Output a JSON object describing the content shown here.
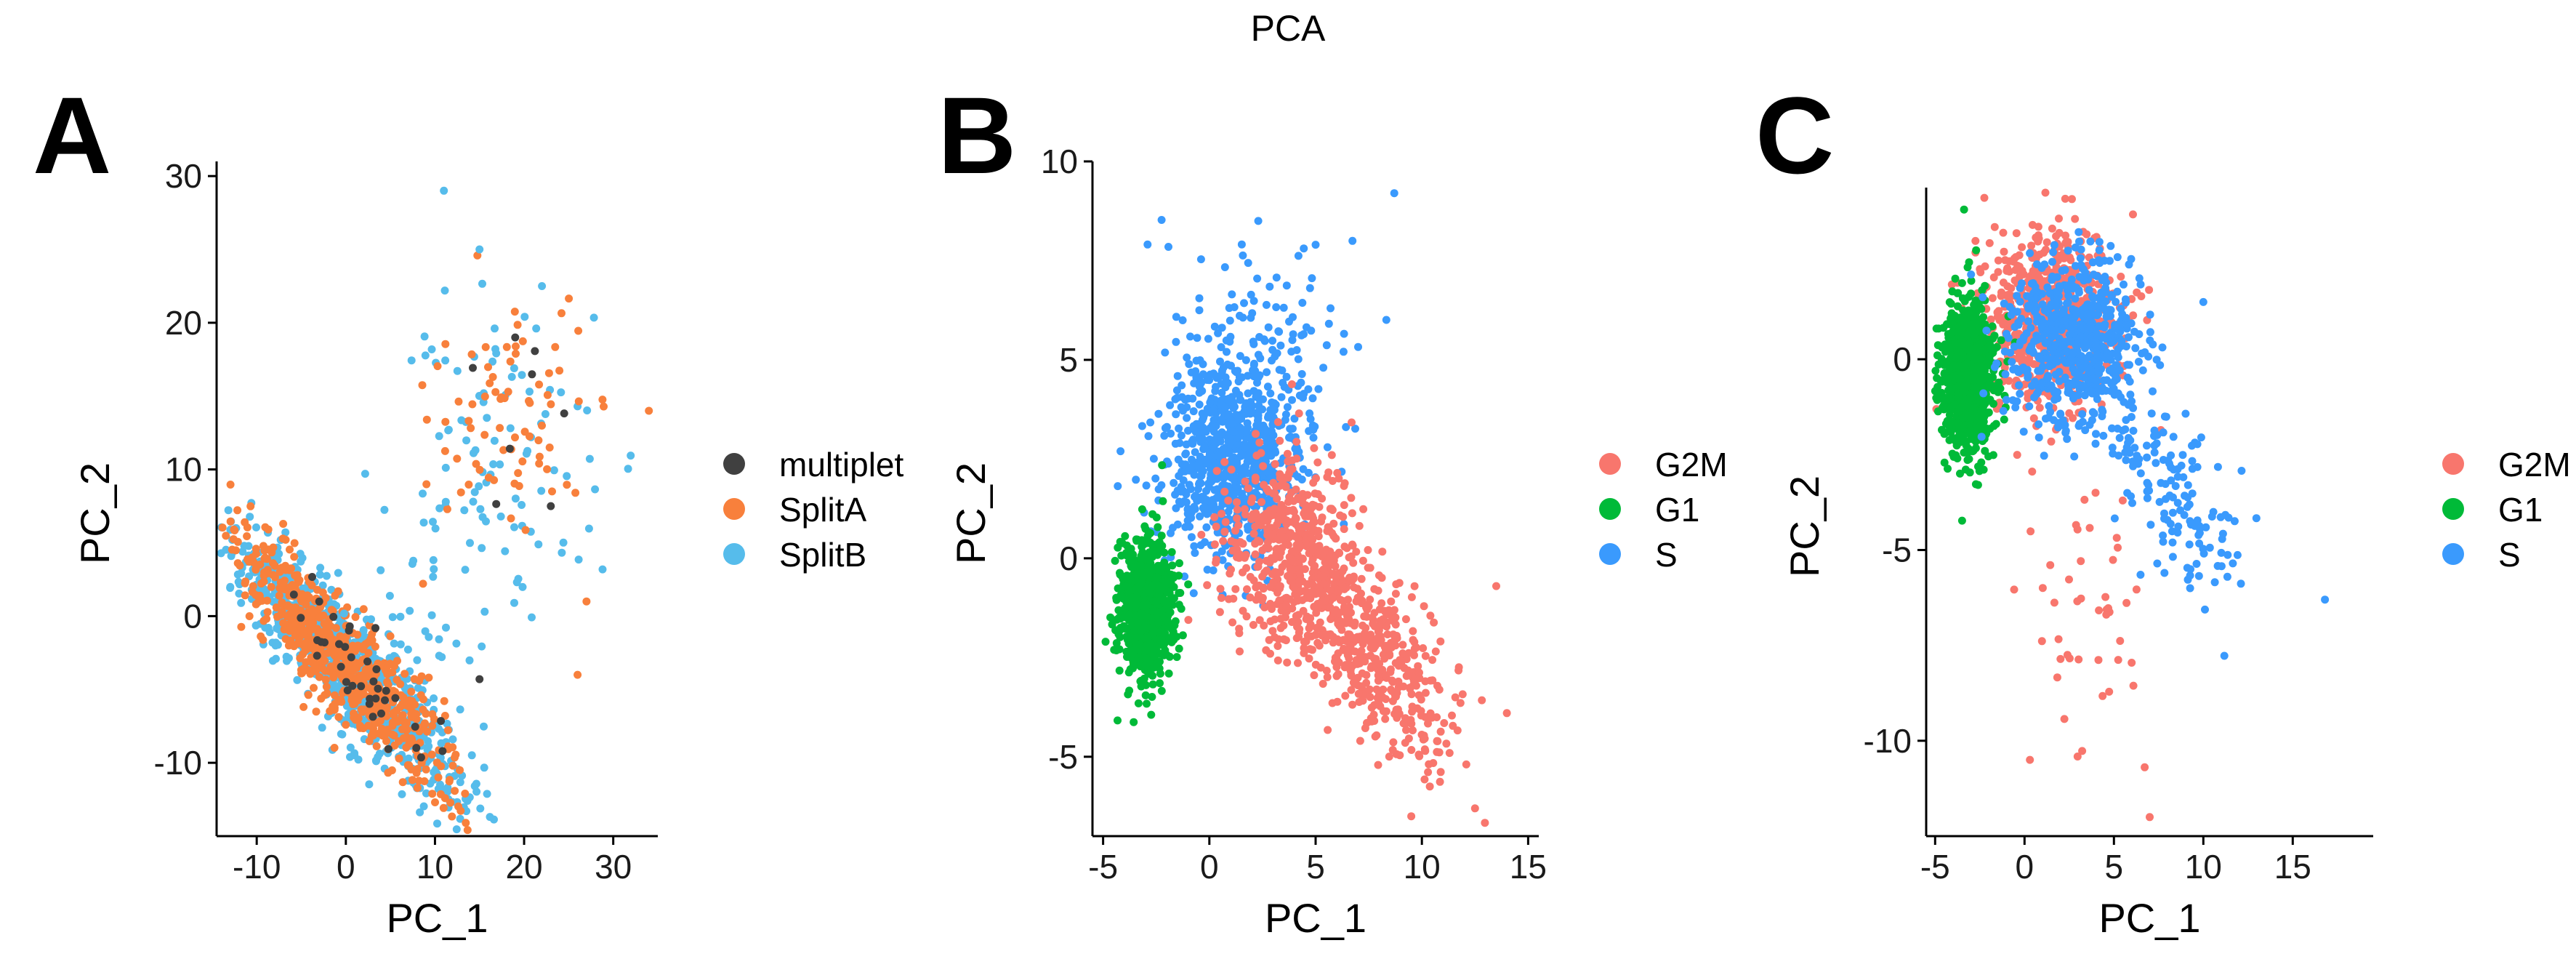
{
  "figure_title": "PCA",
  "chart_data": [
    {
      "id": "A",
      "panel_label": "A",
      "type": "scatter",
      "xlabel": "PC_1",
      "ylabel": "PC_2",
      "xlim": [
        -14.5,
        35
      ],
      "ylim": [
        -15,
        31
      ],
      "xticks": [
        -10,
        0,
        10,
        20,
        30
      ],
      "yticks": [
        -10,
        0,
        10,
        20,
        30
      ],
      "grid": false,
      "legend_position": "right",
      "series": [
        {
          "name": "multiplet",
          "color": "#404040"
        },
        {
          "name": "SplitA",
          "color": "#F8803C"
        },
        {
          "name": "SplitB",
          "color": "#56BCEB"
        }
      ],
      "clusters": [
        {
          "series": "SplitB",
          "n": 900,
          "kind": "line",
          "from": [
            -10,
            3.5
          ],
          "to": [
            10,
            -10
          ],
          "sd_along": 0.32,
          "sd_perp": 1.7
        },
        {
          "series": "SplitA",
          "n": 650,
          "kind": "line",
          "from": [
            -10,
            3.5
          ],
          "to": [
            10,
            -10
          ],
          "sd_along": 0.32,
          "sd_perp": 1.7
        },
        {
          "series": "SplitB",
          "n": 95,
          "kind": "blob",
          "center": [
            17,
            11
          ],
          "sd": [
            6,
            5
          ]
        },
        {
          "series": "SplitA",
          "n": 75,
          "kind": "blob",
          "center": [
            18,
            13
          ],
          "sd": [
            5,
            4
          ]
        },
        {
          "series": "SplitB",
          "n": 30,
          "kind": "blob",
          "center": [
            9,
            2
          ],
          "sd": [
            4,
            5
          ]
        },
        {
          "series": "multiplet",
          "n": 38,
          "kind": "line",
          "from": [
            -8,
            2
          ],
          "to": [
            8,
            -8
          ],
          "sd_along": 0.3,
          "sd_perp": 1.4
        },
        {
          "series": "multiplet",
          "n": 6,
          "kind": "blob",
          "center": [
            20,
            14
          ],
          "sd": [
            3,
            4
          ]
        }
      ],
      "points": [
        {
          "series": "SplitB",
          "x": 11,
          "y": 29
        },
        {
          "series": "SplitB",
          "x": 15,
          "y": 25
        },
        {
          "series": "SplitB",
          "x": 22,
          "y": 22.5
        },
        {
          "series": "SplitA",
          "x": 34,
          "y": 14
        },
        {
          "series": "SplitA",
          "x": 27,
          "y": 1
        },
        {
          "series": "SplitA",
          "x": 26,
          "y": -4
        },
        {
          "series": "multiplet",
          "x": 15,
          "y": -4.3
        },
        {
          "series": "multiplet",
          "x": 23,
          "y": 7.5
        },
        {
          "series": "multiplet",
          "x": 19,
          "y": 19
        }
      ]
    },
    {
      "id": "B",
      "panel_label": "B",
      "type": "scatter",
      "xlabel": "PC_1",
      "ylabel": "PC_2",
      "xlim": [
        -5.5,
        15.5
      ],
      "ylim": [
        -7,
        10
      ],
      "xticks": [
        -5,
        0,
        5,
        10,
        15
      ],
      "yticks": [
        -5,
        0,
        5,
        10
      ],
      "grid": false,
      "legend_position": "right",
      "series": [
        {
          "name": "G2M",
          "color": "#F8766D"
        },
        {
          "name": "G1",
          "color": "#00BA38"
        },
        {
          "name": "S",
          "color": "#3A9AFD"
        }
      ],
      "clusters": [
        {
          "series": "S",
          "n": 800,
          "kind": "blob",
          "center": [
            1.2,
            2.6
          ],
          "sd": [
            1.6,
            1.25
          ]
        },
        {
          "series": "S",
          "n": 90,
          "kind": "blob",
          "center": [
            2.5,
            5.5
          ],
          "sd": [
            2.2,
            1.3
          ]
        },
        {
          "series": "G2M",
          "n": 550,
          "kind": "line",
          "from": [
            2,
            1
          ],
          "to": [
            12,
            -5
          ],
          "sd_along": 0.22,
          "sd_perp": 1.0
        },
        {
          "series": "G2M",
          "n": 380,
          "kind": "blob",
          "center": [
            3.5,
            0.3
          ],
          "sd": [
            1.5,
            1.2
          ]
        },
        {
          "series": "G1",
          "n": 900,
          "kind": "blob",
          "center": [
            -3.0,
            -1.2
          ],
          "sd": [
            0.6,
            0.85
          ]
        }
      ],
      "points": [
        {
          "series": "S",
          "x": 8.7,
          "y": 9.2
        },
        {
          "series": "S",
          "x": 2.3,
          "y": 8.5
        },
        {
          "series": "S",
          "x": 5.0,
          "y": 7.9
        },
        {
          "series": "G2M",
          "x": 12.5,
          "y": -6.3
        },
        {
          "series": "G2M",
          "x": 14,
          "y": -3.9
        },
        {
          "series": "G2M",
          "x": 9.5,
          "y": -6.5
        },
        {
          "series": "G2M",
          "x": 13.5,
          "y": -0.7
        }
      ]
    },
    {
      "id": "C",
      "panel_label": "C",
      "type": "scatter",
      "xlabel": "PC_1",
      "ylabel": "PC_2",
      "xlim": [
        -5.5,
        19.5
      ],
      "ylim": [
        -12.5,
        4.5
      ],
      "xticks": [
        -5,
        0,
        5,
        10,
        15
      ],
      "yticks": [
        -10,
        -5,
        0
      ],
      "grid": false,
      "legend_position": "right",
      "series": [
        {
          "name": "G2M",
          "color": "#F8766D"
        },
        {
          "name": "G1",
          "color": "#00BA38"
        },
        {
          "name": "S",
          "color": "#3A9AFD"
        }
      ],
      "clusters": [
        {
          "series": "G2M",
          "n": 700,
          "kind": "blob",
          "center": [
            1.5,
            1.0
          ],
          "sd": [
            1.9,
            1.2
          ]
        },
        {
          "series": "G2M",
          "n": 45,
          "kind": "blob",
          "center": [
            3.5,
            -7.0
          ],
          "sd": [
            1.8,
            2.2
          ]
        },
        {
          "series": "G1",
          "n": 900,
          "kind": "blob",
          "center": [
            -3.2,
            -0.5
          ],
          "sd": [
            0.75,
            1.0
          ]
        },
        {
          "series": "S",
          "n": 600,
          "kind": "blob",
          "center": [
            2.8,
            0.5
          ],
          "sd": [
            1.8,
            1.1
          ]
        },
        {
          "series": "S",
          "n": 150,
          "kind": "line",
          "from": [
            4,
            -1
          ],
          "to": [
            12,
            -5.5
          ],
          "sd_along": 0.25,
          "sd_perp": 0.9
        }
      ],
      "points": [
        {
          "series": "S",
          "x": 16.8,
          "y": -6.3
        },
        {
          "series": "G2M",
          "x": 7.0,
          "y": -12.0
        },
        {
          "series": "G2M",
          "x": 0.3,
          "y": -10.5
        },
        {
          "series": "S",
          "x": 10.0,
          "y": 1.5
        }
      ]
    }
  ]
}
